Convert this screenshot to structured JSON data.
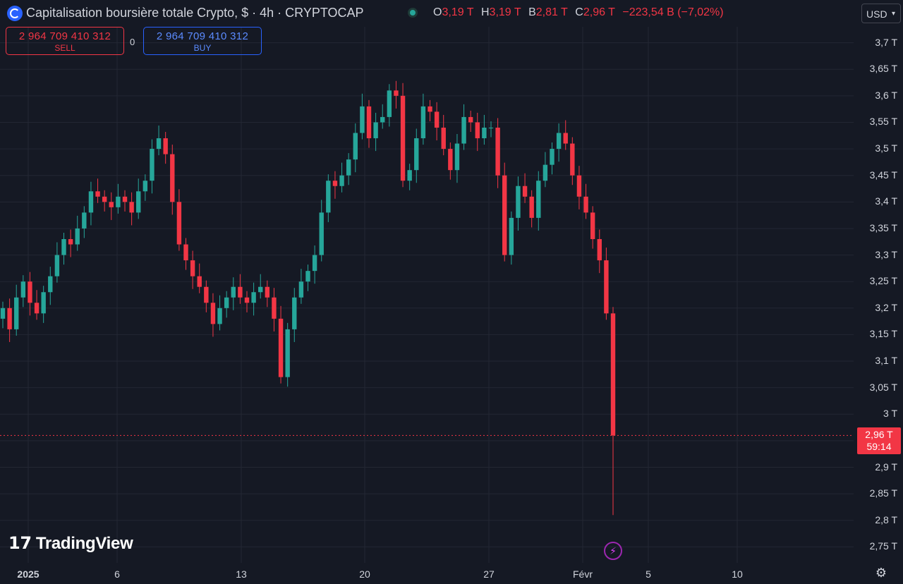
{
  "header": {
    "title": "Capitalisation boursière totale Crypto, $ · 4h · CRYPTOCAP",
    "ohlc": [
      {
        "key": "O",
        "value": "3,19 T"
      },
      {
        "key": "H",
        "value": "3,19 T"
      },
      {
        "key": "B",
        "value": "2,81 T"
      },
      {
        "key": "C",
        "value": "2,96 T"
      }
    ],
    "change": "−223,54 B (−7,02%)",
    "currency": "USD"
  },
  "trade": {
    "sell_price": "2 964 709 410 312",
    "sell_label": "SELL",
    "buy_price": "2 964 709 410 312",
    "buy_label": "BUY",
    "spread": "0"
  },
  "last_price": {
    "value": "2,96 T",
    "countdown": "59:14"
  },
  "brand": "TradingView",
  "colors": {
    "up": "#26a69a",
    "down": "#f23645",
    "background": "#151924",
    "grid": "#232733",
    "accent": "#2962ff"
  },
  "icons": {
    "logo": "cryptocap-logo-icon",
    "status": "market-status-icon",
    "bolt": "lightning-icon",
    "settings": "gear-icon"
  },
  "chart_data": {
    "type": "candlestick",
    "title": "Capitalisation boursière totale Crypto, $ · 4h · CRYPTOCAP",
    "y_unit": "T USD",
    "ylim": [
      2.72,
      3.73
    ],
    "y_ticks": [
      "3,7 T",
      "3,65 T",
      "3,6 T",
      "3,55 T",
      "3,5 T",
      "3,45 T",
      "3,4 T",
      "3,35 T",
      "3,3 T",
      "3,25 T",
      "3,2 T",
      "3,15 T",
      "3,1 T",
      "3,05 T",
      "3 T",
      "2,95 T",
      "2,9 T",
      "2,85 T",
      "2,8 T",
      "2,75 T"
    ],
    "x_ticks": [
      "2025",
      "6",
      "13",
      "20",
      "27",
      "Févr",
      "5",
      "10"
    ],
    "grid": true,
    "last_close": 2.96,
    "closes": [
      3.2,
      3.16,
      3.22,
      3.25,
      3.21,
      3.19,
      3.23,
      3.26,
      3.3,
      3.33,
      3.32,
      3.35,
      3.38,
      3.42,
      3.41,
      3.4,
      3.39,
      3.41,
      3.4,
      3.38,
      3.42,
      3.44,
      3.5,
      3.52,
      3.49,
      3.4,
      3.32,
      3.29,
      3.26,
      3.24,
      3.21,
      3.17,
      3.2,
      3.22,
      3.24,
      3.22,
      3.21,
      3.23,
      3.24,
      3.22,
      3.18,
      3.07,
      3.16,
      3.22,
      3.25,
      3.27,
      3.3,
      3.38,
      3.44,
      3.43,
      3.45,
      3.48,
      3.53,
      3.58,
      3.52,
      3.55,
      3.56,
      3.61,
      3.6,
      3.44,
      3.46,
      3.52,
      3.58,
      3.57,
      3.54,
      3.5,
      3.46,
      3.51,
      3.56,
      3.55,
      3.52,
      3.54,
      3.54,
      3.45,
      3.3,
      3.37,
      3.43,
      3.41,
      3.37,
      3.44,
      3.47,
      3.5,
      3.53,
      3.51,
      3.45,
      3.41,
      3.38,
      3.33,
      3.29,
      3.19,
      2.96
    ]
  }
}
